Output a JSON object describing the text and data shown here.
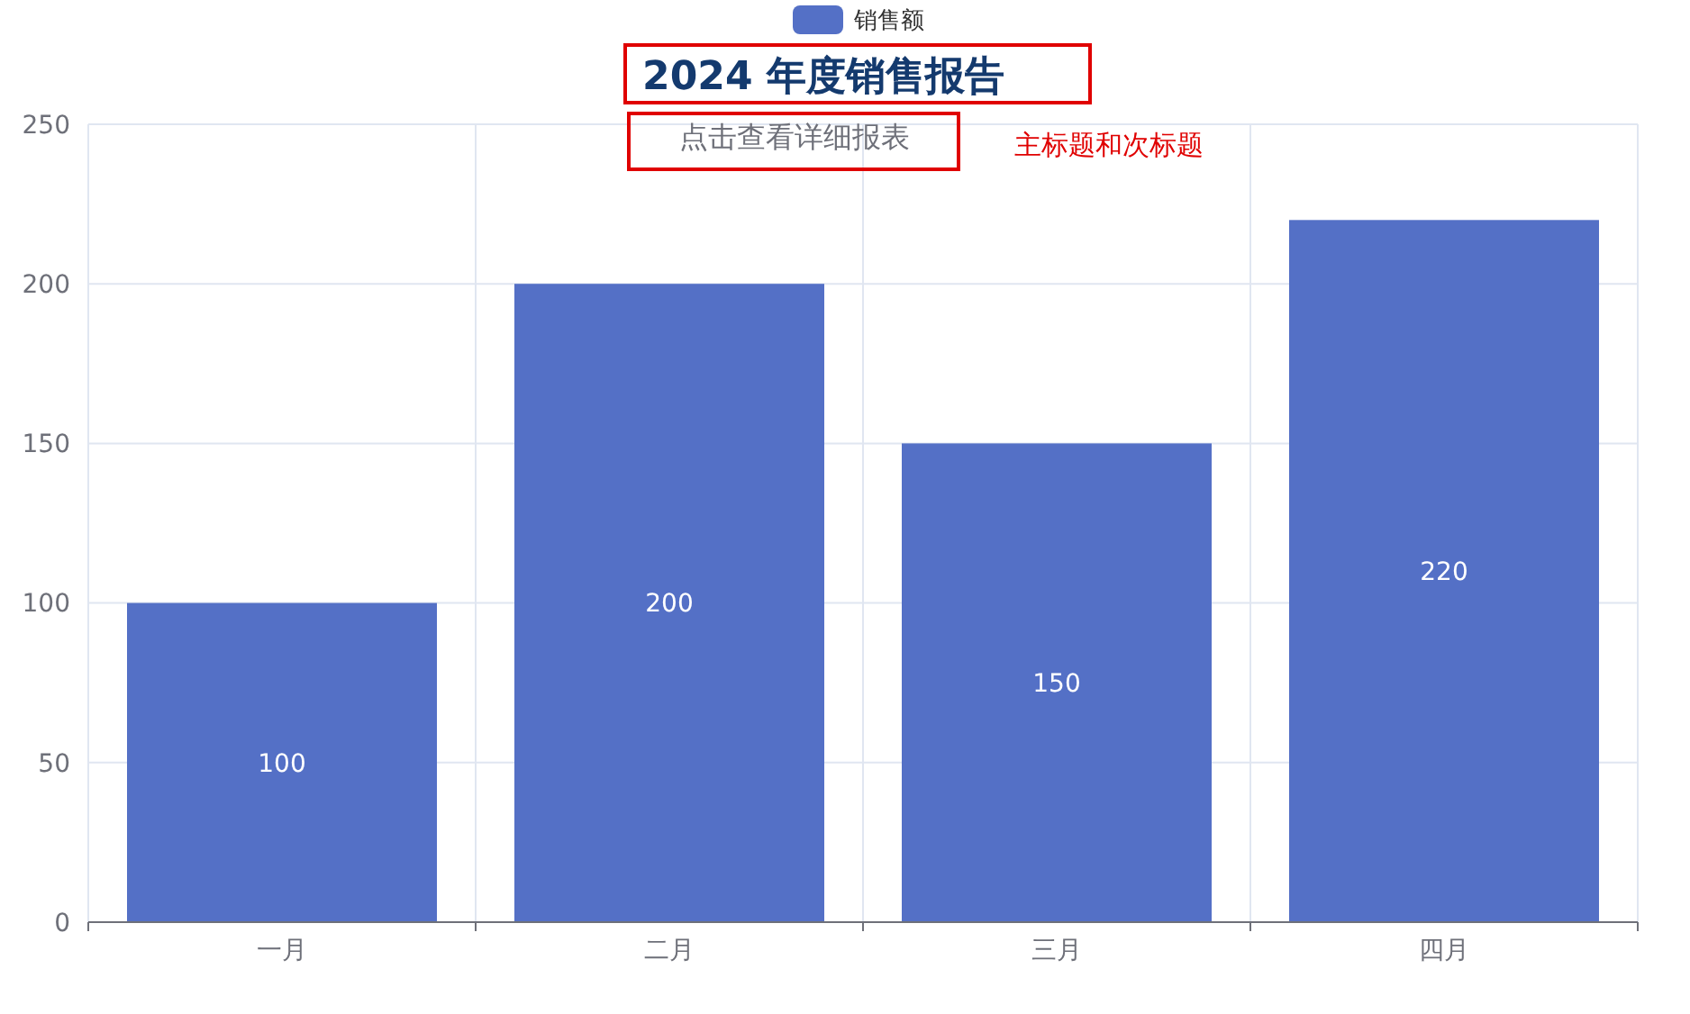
{
  "chart_data": {
    "type": "bar",
    "title": "2024 年度销售报告",
    "subtitle": "点击查看详细报表",
    "annotations": [
      "主标题和次标题"
    ],
    "categories": [
      "一月",
      "二月",
      "三月",
      "四月"
    ],
    "series": [
      {
        "name": "销售额",
        "color": "#5470c6",
        "values": [
          100,
          200,
          150,
          220
        ]
      }
    ],
    "ylim": [
      0,
      250
    ],
    "yticks": [
      0,
      50,
      100,
      150,
      200,
      250
    ],
    "grid": true,
    "legend": "top",
    "data_labels": true
  }
}
